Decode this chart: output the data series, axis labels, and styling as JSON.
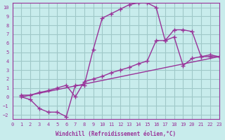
{
  "xlabel": "Windchill (Refroidissement éolien,°C)",
  "background_color": "#c8ecec",
  "grid_color": "#a0c8c8",
  "line_color": "#993399",
  "xlim": [
    0,
    23
  ],
  "ylim": [
    -2.5,
    10.5
  ],
  "xticks": [
    0,
    1,
    2,
    3,
    4,
    5,
    6,
    7,
    8,
    9,
    10,
    11,
    12,
    13,
    14,
    15,
    16,
    17,
    18,
    19,
    20,
    21,
    22,
    23
  ],
  "yticks": [
    -2,
    -1,
    0,
    1,
    2,
    3,
    4,
    5,
    6,
    7,
    8,
    9,
    10
  ],
  "series1_x": [
    1,
    2,
    3,
    4,
    5,
    6,
    7,
    8,
    9,
    10,
    11,
    12,
    13,
    14,
    15,
    16,
    17,
    18,
    19,
    20,
    21,
    22,
    23
  ],
  "series1_y": [
    0,
    -0.3,
    -1.3,
    -1.7,
    -1.7,
    -2.2,
    1.3,
    1.3,
    5.3,
    8.8,
    9.3,
    9.8,
    10.3,
    10.5,
    10.5,
    10.0,
    6.3,
    7.5,
    7.5,
    7.3,
    4.5,
    4.5,
    4.5
  ],
  "series2_x": [
    1,
    2,
    3,
    4,
    5,
    6,
    7,
    8,
    9,
    10,
    11,
    12,
    13,
    14,
    15,
    16,
    17,
    18,
    19,
    20,
    21,
    22,
    23
  ],
  "series2_y": [
    0.2,
    0.2,
    0.5,
    0.7,
    1.0,
    1.3,
    0.0,
    1.7,
    2.0,
    2.3,
    2.7,
    3.0,
    3.3,
    3.7,
    4.0,
    6.3,
    6.3,
    6.7,
    3.5,
    4.3,
    4.5,
    4.7,
    4.5
  ],
  "series3_x": [
    1,
    23
  ],
  "series3_y": [
    0.0,
    4.5
  ]
}
